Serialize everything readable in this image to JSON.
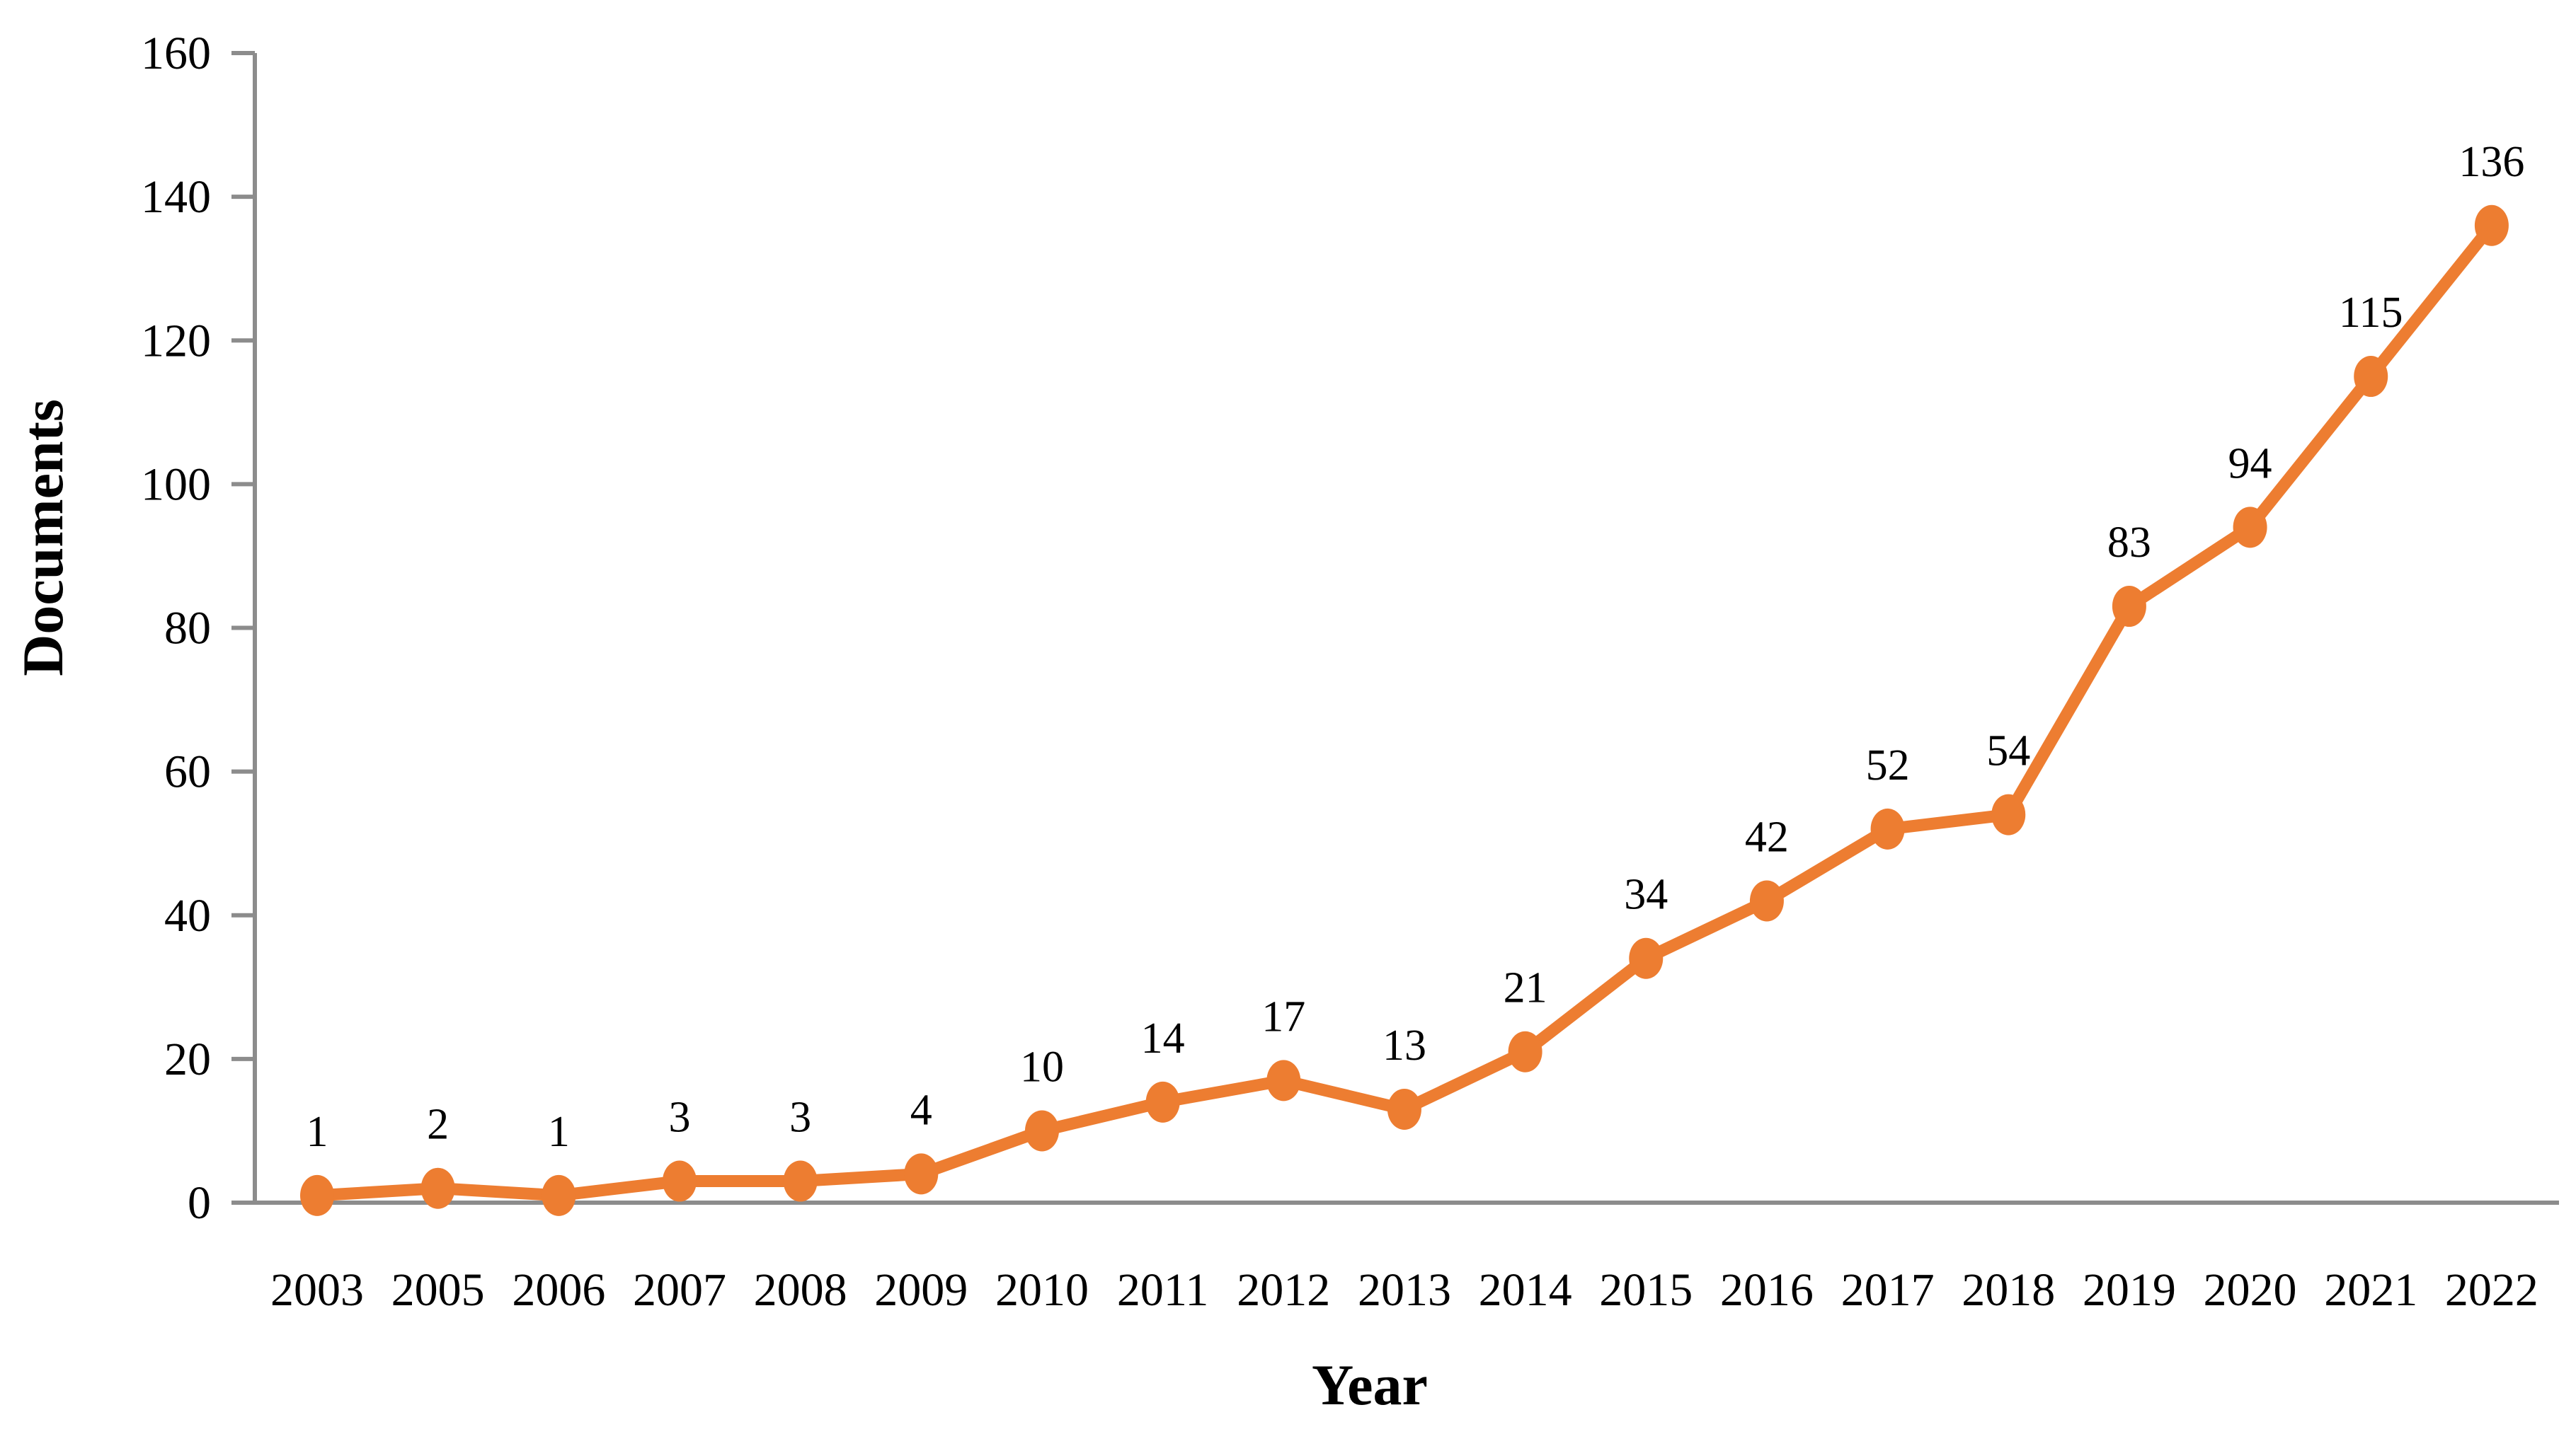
{
  "chart_data": {
    "type": "line",
    "title": "",
    "xlabel": "Year",
    "ylabel": "Documents",
    "categories": [
      "2003",
      "2005",
      "2006",
      "2007",
      "2008",
      "2009",
      "2010",
      "2011",
      "2012",
      "2013",
      "2014",
      "2015",
      "2016",
      "2017",
      "2018",
      "2019",
      "2020",
      "2021",
      "2022"
    ],
    "values": [
      1,
      2,
      1,
      3,
      3,
      4,
      10,
      14,
      17,
      13,
      21,
      34,
      42,
      52,
      54,
      83,
      94,
      115,
      136
    ],
    "data_labels": [
      1,
      2,
      1,
      3,
      3,
      4,
      10,
      14,
      17,
      13,
      21,
      34,
      42,
      52,
      54,
      83,
      94,
      115,
      136
    ],
    "ylim": [
      0,
      160
    ],
    "yticks": [
      0,
      20,
      40,
      60,
      80,
      100,
      120,
      140,
      160
    ],
    "grid": false,
    "legend_position": "none",
    "marker": "circle",
    "show_point_labels": true
  },
  "colors": {
    "series_line": "#ED7D31",
    "series_marker": "#ED7D31",
    "axis_line": "#8C8C8C",
    "text": "#000000",
    "background": "#FFFFFF"
  }
}
